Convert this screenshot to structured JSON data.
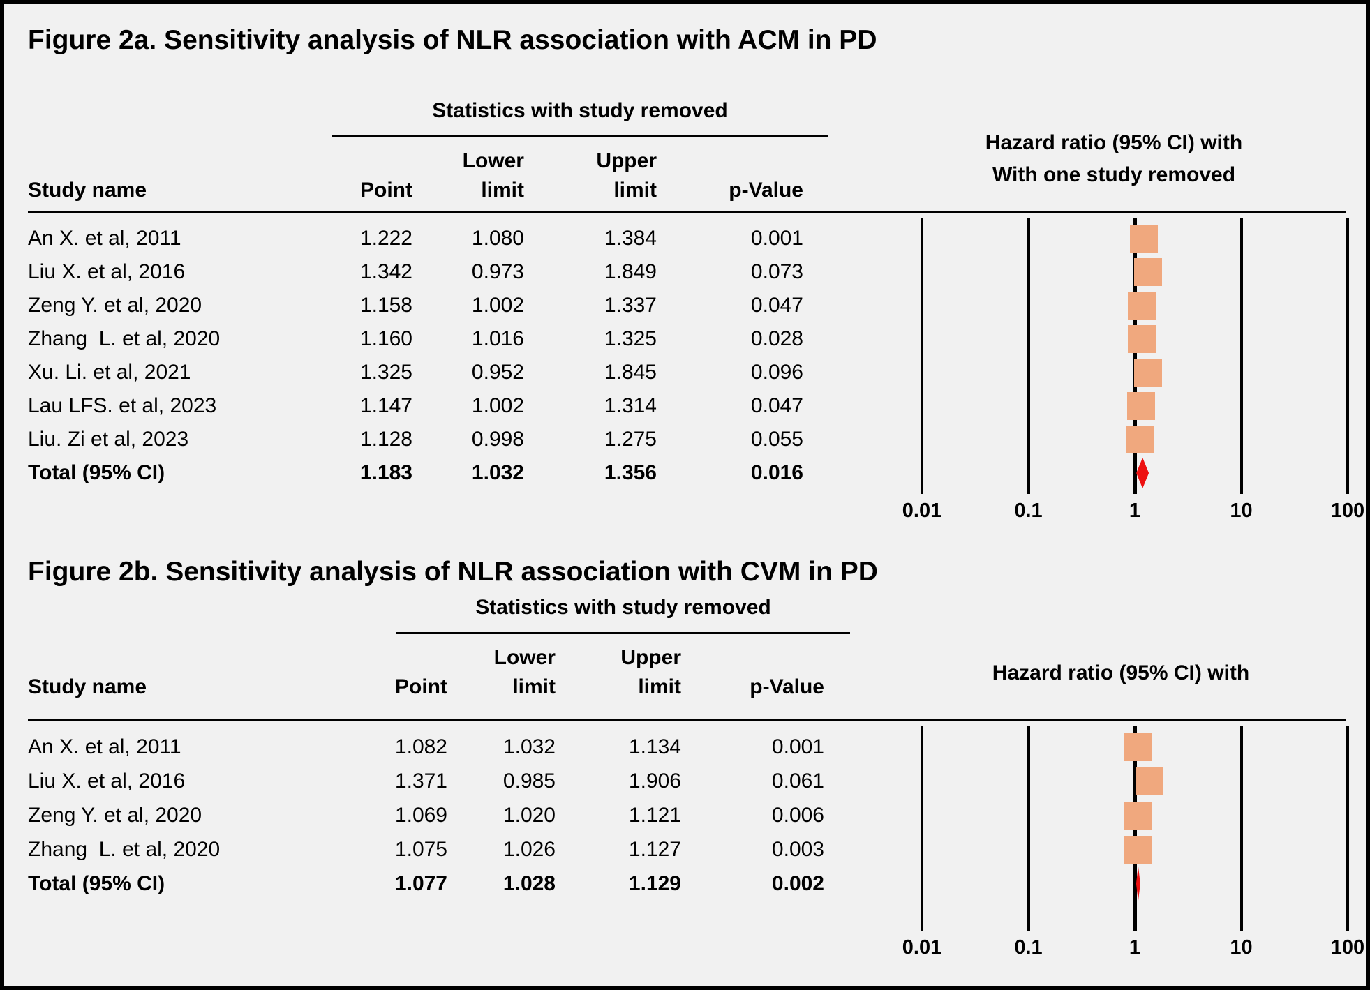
{
  "colors": {
    "background": "#F1F1F1",
    "square_fill": "#F0A87E",
    "diamond_fill": "#ED1111",
    "line": "#000000"
  },
  "figures": [
    {
      "title": "Figure 2a. Sensitivity analysis of NLR association with ACM in PD",
      "stats_header": "Statistics with study removed",
      "col_study": "Study name",
      "col_point": "Point",
      "col_lower_top": "Lower",
      "col_lower_bot": "limit",
      "col_upper_top": "Upper",
      "col_upper_bot": "limit",
      "col_p": "p-Value",
      "plot_header_1": "Hazard ratio (95% CI) with",
      "plot_header_2": "With one study removed",
      "axis_ticks": [
        "0.01",
        "0.1",
        "1",
        "10",
        "100"
      ]
    },
    {
      "title": "Figure 2b. Sensitivity analysis of NLR association with CVM in PD",
      "stats_header": "Statistics with study removed",
      "col_study": "Study name",
      "col_point": "Point",
      "col_lower_top": "Lower",
      "col_lower_bot": "limit",
      "col_upper_top": "Upper",
      "col_upper_bot": "limit",
      "col_p": "p-Value",
      "plot_header_1": "Hazard ratio (95% CI) with",
      "axis_ticks": [
        "0.01",
        "0.1",
        "1",
        "10",
        "100"
      ]
    }
  ],
  "chart_data": [
    {
      "type": "forest",
      "figure": "2a",
      "title": "Sensitivity analysis of NLR association with ACM in PD",
      "x_axis": {
        "scale": "log",
        "ticks": [
          0.01,
          0.1,
          1,
          10,
          100
        ],
        "xlim": [
          0.01,
          100
        ]
      },
      "rows": [
        {
          "study": "An X. et al, 2011",
          "point": "1.222",
          "lower": "1.080",
          "upper": "1.384",
          "p": "0.001"
        },
        {
          "study": "Liu X. et al, 2016",
          "point": "1.342",
          "lower": "0.973",
          "upper": "1.849",
          "p": "0.073"
        },
        {
          "study": "Zeng Y. et al, 2020",
          "point": "1.158",
          "lower": "1.002",
          "upper": "1.337",
          "p": "0.047"
        },
        {
          "study": "Zhang  L. et al, 2020",
          "point": "1.160",
          "lower": "1.016",
          "upper": "1.325",
          "p": "0.028"
        },
        {
          "study": "Xu. Li. et al, 2021",
          "point": "1.325",
          "lower": "0.952",
          "upper": "1.845",
          "p": "0.096"
        },
        {
          "study": "Lau LFS. et al, 2023",
          "point": "1.147",
          "lower": "1.002",
          "upper": "1.314",
          "p": "0.047"
        },
        {
          "study": "Liu. Zi et al, 2023",
          "point": "1.128",
          "lower": "0.998",
          "upper": "1.275",
          "p": "0.055"
        }
      ],
      "total": {
        "study": "Total (95% CI)",
        "point": "1.183",
        "lower": "1.032",
        "upper": "1.356",
        "p": "0.016"
      }
    },
    {
      "type": "forest",
      "figure": "2b",
      "title": "Sensitivity analysis of NLR association with CVM in PD",
      "x_axis": {
        "scale": "log",
        "ticks": [
          0.01,
          0.1,
          1,
          10,
          100
        ],
        "xlim": [
          0.01,
          100
        ]
      },
      "rows": [
        {
          "study": "An X. et al, 2011",
          "point": "1.082",
          "lower": "1.032",
          "upper": "1.134",
          "p": "0.001"
        },
        {
          "study": "Liu X. et al, 2016",
          "point": "1.371",
          "lower": "0.985",
          "upper": "1.906",
          "p": "0.061"
        },
        {
          "study": "Zeng Y. et al, 2020",
          "point": "1.069",
          "lower": "1.020",
          "upper": "1.121",
          "p": "0.006"
        },
        {
          "study": "Zhang  L. et al, 2020",
          "point": "1.075",
          "lower": "1.026",
          "upper": "1.127",
          "p": "0.003"
        }
      ],
      "total": {
        "study": "Total (95% CI)",
        "point": "1.077",
        "lower": "1.028",
        "upper": "1.129",
        "p": "0.002"
      }
    }
  ]
}
